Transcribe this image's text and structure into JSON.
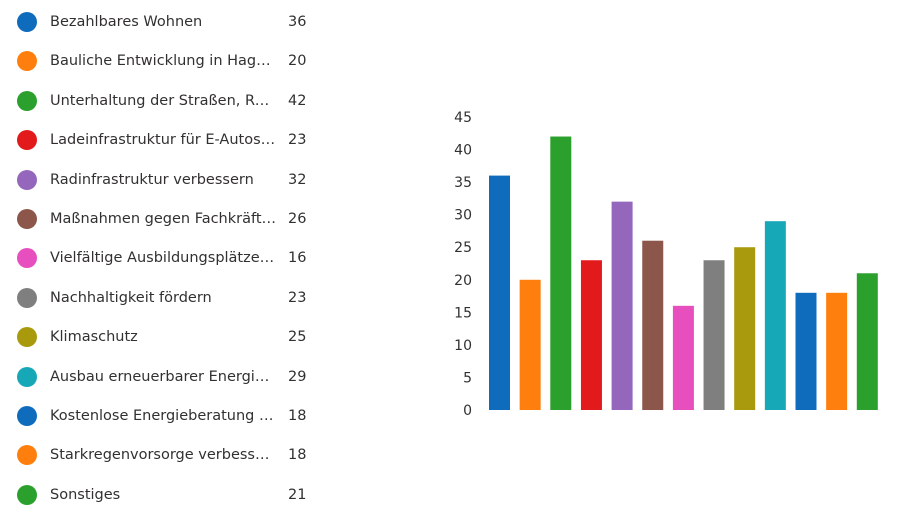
{
  "chart_data": {
    "type": "bar",
    "categories": [
      "Bezahlbares Wohnen",
      "Bauliche Entwicklung in Hage v...",
      "Unterhaltung der Straßen, Rad- ...",
      "Ladeinfrastruktur für E-Autos un...",
      "Radinfrastruktur verbessern",
      "Maßnahmen gegen Fachkräftem...",
      "Vielfältige Ausbildungsplätze an...",
      "Nachhaltigkeit fördern",
      "Klimaschutz",
      "Ausbau erneuerbarer Energien v...",
      "Kostenlose Energieberatung an...",
      "Starkregenvorsorge verbessern",
      "Sonstiges"
    ],
    "values": [
      36,
      20,
      42,
      23,
      32,
      26,
      16,
      23,
      25,
      29,
      18,
      18,
      21
    ],
    "colors": [
      "#0f6cbd",
      "#ff7f0e",
      "#2ca02c",
      "#e31a1c",
      "#9467bd",
      "#8c564b",
      "#e74fbf",
      "#7f7f7f",
      "#a89a0c",
      "#17a8b8",
      "#0f6cbd",
      "#ff7f0e",
      "#2ca02c"
    ],
    "y_ticks": [
      0,
      5,
      10,
      15,
      20,
      25,
      30,
      35,
      40,
      45
    ],
    "ylim": [
      0,
      45
    ],
    "grid": false,
    "legend_position": "left"
  }
}
